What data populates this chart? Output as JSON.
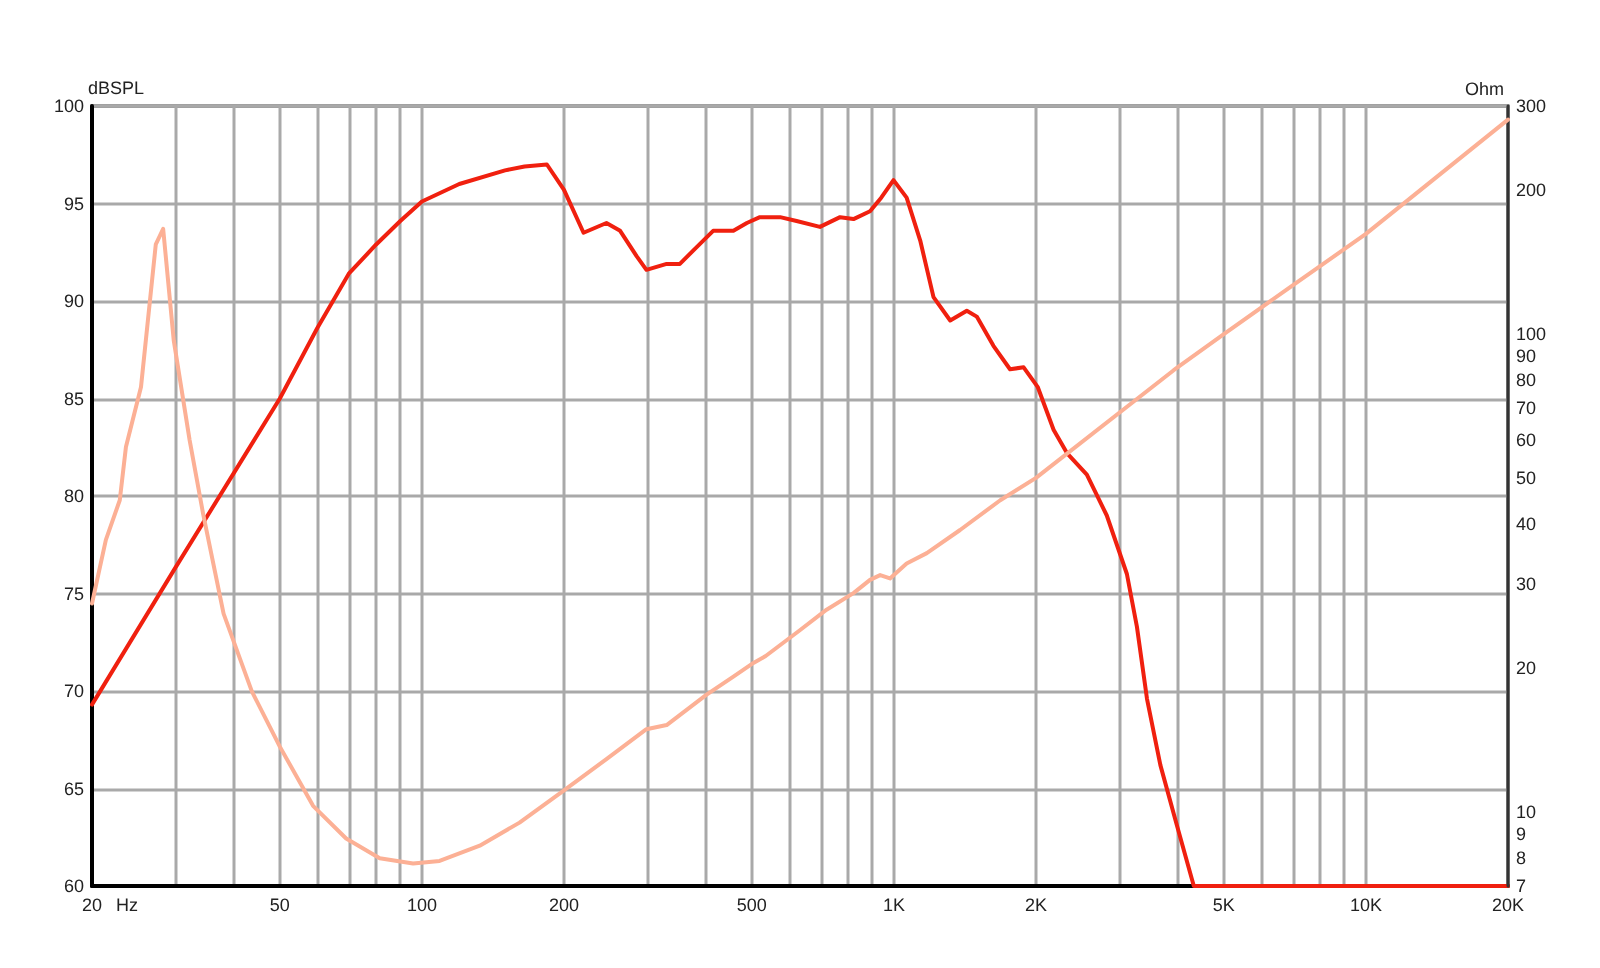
{
  "chart_data": [
    {
      "type": "line",
      "xlabel": "Hz",
      "ylabel": "dBSPL",
      "log": "x",
      "grid": true,
      "marker": "none",
      "xlim": [
        20,
        20000
      ],
      "xticks": [
        20,
        {
          "value": 30,
          "label": null
        },
        {
          "value": 40,
          "label": null
        },
        50,
        {
          "value": 60,
          "label": null
        },
        {
          "value": 70,
          "label": null
        },
        {
          "value": 80,
          "label": null
        },
        {
          "value": 90,
          "label": null
        },
        100,
        200,
        {
          "value": 300,
          "label": null
        },
        {
          "value": 400,
          "label": null
        },
        500,
        {
          "value": 600,
          "label": null
        },
        {
          "value": 700,
          "label": null
        },
        {
          "value": 800,
          "label": null
        },
        {
          "value": 900,
          "label": null
        },
        {
          "value": 1000,
          "label": "1K"
        },
        {
          "value": 2000,
          "label": "2K"
        },
        {
          "value": 3000,
          "label": null
        },
        {
          "value": 4000,
          "label": null
        },
        {
          "value": 5000,
          "label": "5K"
        },
        {
          "value": 6000,
          "label": null
        },
        {
          "value": 7000,
          "label": null
        },
        {
          "value": 8000,
          "label": null
        },
        {
          "value": 9000,
          "label": null
        },
        {
          "value": 10000,
          "label": "10K"
        },
        {
          "value": 20000,
          "label": "20K"
        }
      ],
      "ylim": [
        60,
        100
      ],
      "yticks": [
        60,
        65,
        70,
        75,
        80,
        85,
        90,
        95,
        100
      ],
      "series": [
        {
          "color": "#f0200f",
          "x": [
            20,
            30,
            40,
            50,
            60,
            70,
            80,
            90,
            100,
            120,
            150,
            165,
            184,
            200,
            220,
            246,
            263,
            285,
            299,
            330,
            352,
            376,
            414,
            457,
            488,
            520,
            574,
            622,
            697,
            769,
            821,
            890,
            940,
            998,
            1064,
            1137,
            1213,
            1316,
            1427,
            1498,
            1625,
            1762,
            1883,
            2016,
            2179,
            2326,
            2563,
            2825,
            3116,
            3272,
            3437,
            3669,
            3978,
            4319,
            20000
          ],
          "values": [
            69.3,
            76.3,
            81.2,
            85.0,
            88.6,
            91.4,
            92.9,
            94.1,
            95.1,
            96.0,
            96.7,
            96.9,
            97.0,
            95.7,
            93.5,
            94.0,
            93.6,
            92.3,
            91.6,
            91.9,
            91.9,
            92.6,
            93.6,
            93.6,
            94.0,
            94.3,
            94.3,
            94.1,
            93.8,
            94.3,
            94.2,
            94.6,
            95.3,
            96.2,
            95.3,
            93.1,
            90.2,
            89.0,
            89.5,
            89.2,
            87.7,
            86.5,
            86.6,
            85.6,
            83.4,
            82.2,
            81.1,
            79.0,
            76.0,
            73.3,
            69.6,
            66.2,
            63.1,
            60,
            60
          ]
        }
      ]
    },
    {
      "type": "line",
      "ylabel": "Ohm",
      "log": "xy",
      "marker": "none",
      "tick_labels": "y",
      "xlim": [
        20,
        20000
      ],
      "ylim": [
        7,
        300
      ],
      "yticks": [
        7,
        8,
        9,
        10,
        20,
        30,
        40,
        50,
        60,
        70,
        80,
        90,
        100,
        200,
        300
      ],
      "series": [
        {
          "color": "#fcb095",
          "x": [
            20,
            21.4,
            22.9,
            23.6,
            25.4,
            27.3,
            28.3,
            29.8,
            32.2,
            34.4,
            38,
            43.6,
            50,
            58.8,
            69.1,
            81.4,
            95.8,
            109,
            132.6,
            161,
            200,
            246,
            299,
            330,
            401,
            457,
            504,
            535,
            632,
            720,
            821,
            890,
            935,
            981,
            1064,
            1174,
            1381,
            1680,
            2000,
            3915,
            5000,
            6805,
            10000,
            20000
          ],
          "values": [
            27.3,
            37.1,
            44.9,
            58,
            77.5,
            154,
            166,
            97,
            60,
            42,
            26,
            17.9,
            13.7,
            10.3,
            8.8,
            8.0,
            7.8,
            7.9,
            8.5,
            9.5,
            11.1,
            12.9,
            14.9,
            15.2,
            17.6,
            19.2,
            20.5,
            21.2,
            24.0,
            26.5,
            28.7,
            30.6,
            31.3,
            30.8,
            33.1,
            34.8,
            38.9,
            44.9,
            50,
            84,
            100,
            124,
            162,
            281
          ]
        }
      ]
    }
  ]
}
